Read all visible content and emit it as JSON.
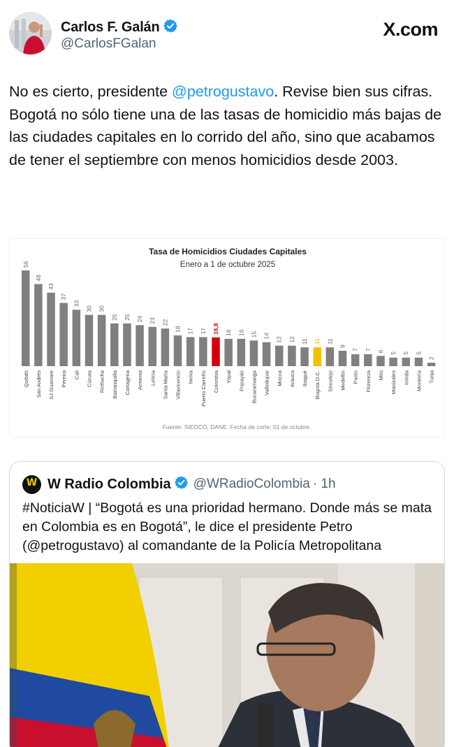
{
  "author": {
    "name": "Carlos F. Galán",
    "handle": "@CarlosFGalan"
  },
  "brand": "X.com",
  "tweet": {
    "pre_mention": "No es cierto, presidente ",
    "mention": "@petrogustavo",
    "post_mention": ". Revise bien sus cifras.",
    "paragraph2": "Bogotá no sólo tiene una de las tasas de homicidio más bajas de las ciudades capitales en lo corrido del año, sino que acabamos de tener el septiembre con menos homicidios desde 2003."
  },
  "chart_data": {
    "type": "bar",
    "title": "Tasa de Homicidios Ciudades Capitales",
    "subtitle": "Enero a 1 de octubre 2025",
    "source": "Fuente: SIEDCO, DANE. Fecha de corte: 01 de octubre.",
    "categories": [
      "Quibdó",
      "San Andrés",
      "SJ Guaviare",
      "Pereira",
      "Cali",
      "Cúcuta",
      "Riohacha",
      "Barranquilla",
      "Cartagena",
      "Armenia",
      "Leticia",
      "Santa Marta",
      "Villavicencio",
      "Neiva",
      "Puerto Carreño",
      "Colombia",
      "Yopal",
      "Popayán",
      "Bucaramanga",
      "Valledupar",
      "Mocoa",
      "Arauca",
      "Ibagué",
      "Bogotá D.C.",
      "Sincelejo",
      "Medellín",
      "Pasto",
      "Florencia",
      "Mitú",
      "Manizales",
      "Inírida",
      "Montería",
      "Tunja"
    ],
    "values": [
      56,
      48,
      43,
      37,
      33,
      30,
      30,
      25,
      25,
      24,
      23,
      22,
      18,
      17,
      17,
      16.8,
      16,
      16,
      15,
      14,
      12,
      12,
      11,
      11,
      11,
      9,
      7,
      7,
      6,
      5,
      5,
      5,
      2
    ],
    "value_labels": [
      "56",
      "48",
      "43",
      "37",
      "33",
      "30",
      "30",
      "25",
      "25",
      "24",
      "23",
      "22",
      "18",
      "17",
      "17",
      "16,8",
      "16",
      "16",
      "15",
      "14",
      "12",
      "12",
      "11",
      "11",
      "11",
      "9",
      "7",
      "7",
      "6",
      "5",
      "5",
      "5",
      "2"
    ],
    "colors": {
      "default": "#808080",
      "highlight_colombia": "#d4000f",
      "highlight_bogota": "#f5c000"
    },
    "highlights": {
      "Colombia": "highlight_colombia",
      "Bogotá D.C.": "highlight_bogota"
    },
    "ylim": [
      0,
      56
    ],
    "grid": false,
    "legend": "none"
  },
  "quote": {
    "name": "W Radio Colombia",
    "handle": "@WRadioColombia",
    "time": "· 1h",
    "logo_letter": "W",
    "text": "#NoticiaW | “Bogotá es una prioridad hermano. Donde más se mata en Colombia es en Bogotá”, le dice el presidente Petro (@petrogustavo) al comandante de la Policía Metropolitana"
  }
}
